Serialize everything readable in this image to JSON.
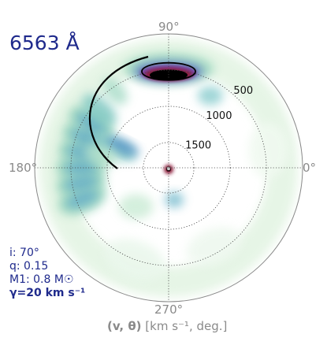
{
  "chart_data": {
    "type": "heatmap",
    "projection": "polar",
    "title": "6563 Å",
    "angular_tick_labels": [
      "90°",
      "180°",
      "0°",
      "270°"
    ],
    "radial_tick_labels": [
      "500",
      "1000",
      "1500"
    ],
    "radial_ticks_velocity": [
      500,
      1000,
      1500
    ],
    "caption": {
      "symbols": "(v, θ)",
      "units": "[km s⁻¹, deg.]"
    },
    "parameters": [
      "i: 70°",
      "q: 0.15",
      "M1: 0.8 M☉",
      "γ=20 km s⁻¹"
    ],
    "colormap": [
      "#ffffff",
      "#c8ecd2",
      "#63c0b8",
      "#3f86c0",
      "#6a3d9a",
      "#8c1c3a",
      "#000000"
    ],
    "intensity_features": [
      {
        "name": "bright_spot",
        "angle_deg": 90,
        "velocity": 520,
        "peak": 1.0
      },
      {
        "name": "stream_arc",
        "angle_deg": 130,
        "velocity": 700,
        "peak": 0.55
      },
      {
        "name": "left_arc",
        "angle_deg": 170,
        "velocity": 640,
        "peak": 0.6
      },
      {
        "name": "inner_stream",
        "angle_deg": 160,
        "velocity": 1100,
        "peak": 0.55
      },
      {
        "name": "central_peak",
        "angle_deg": 270,
        "velocity": 1750,
        "peak": 0.95
      }
    ],
    "grid": "dotted",
    "overlays": [
      "stream trajectory curve",
      "Roche lobe of secondary"
    ]
  }
}
